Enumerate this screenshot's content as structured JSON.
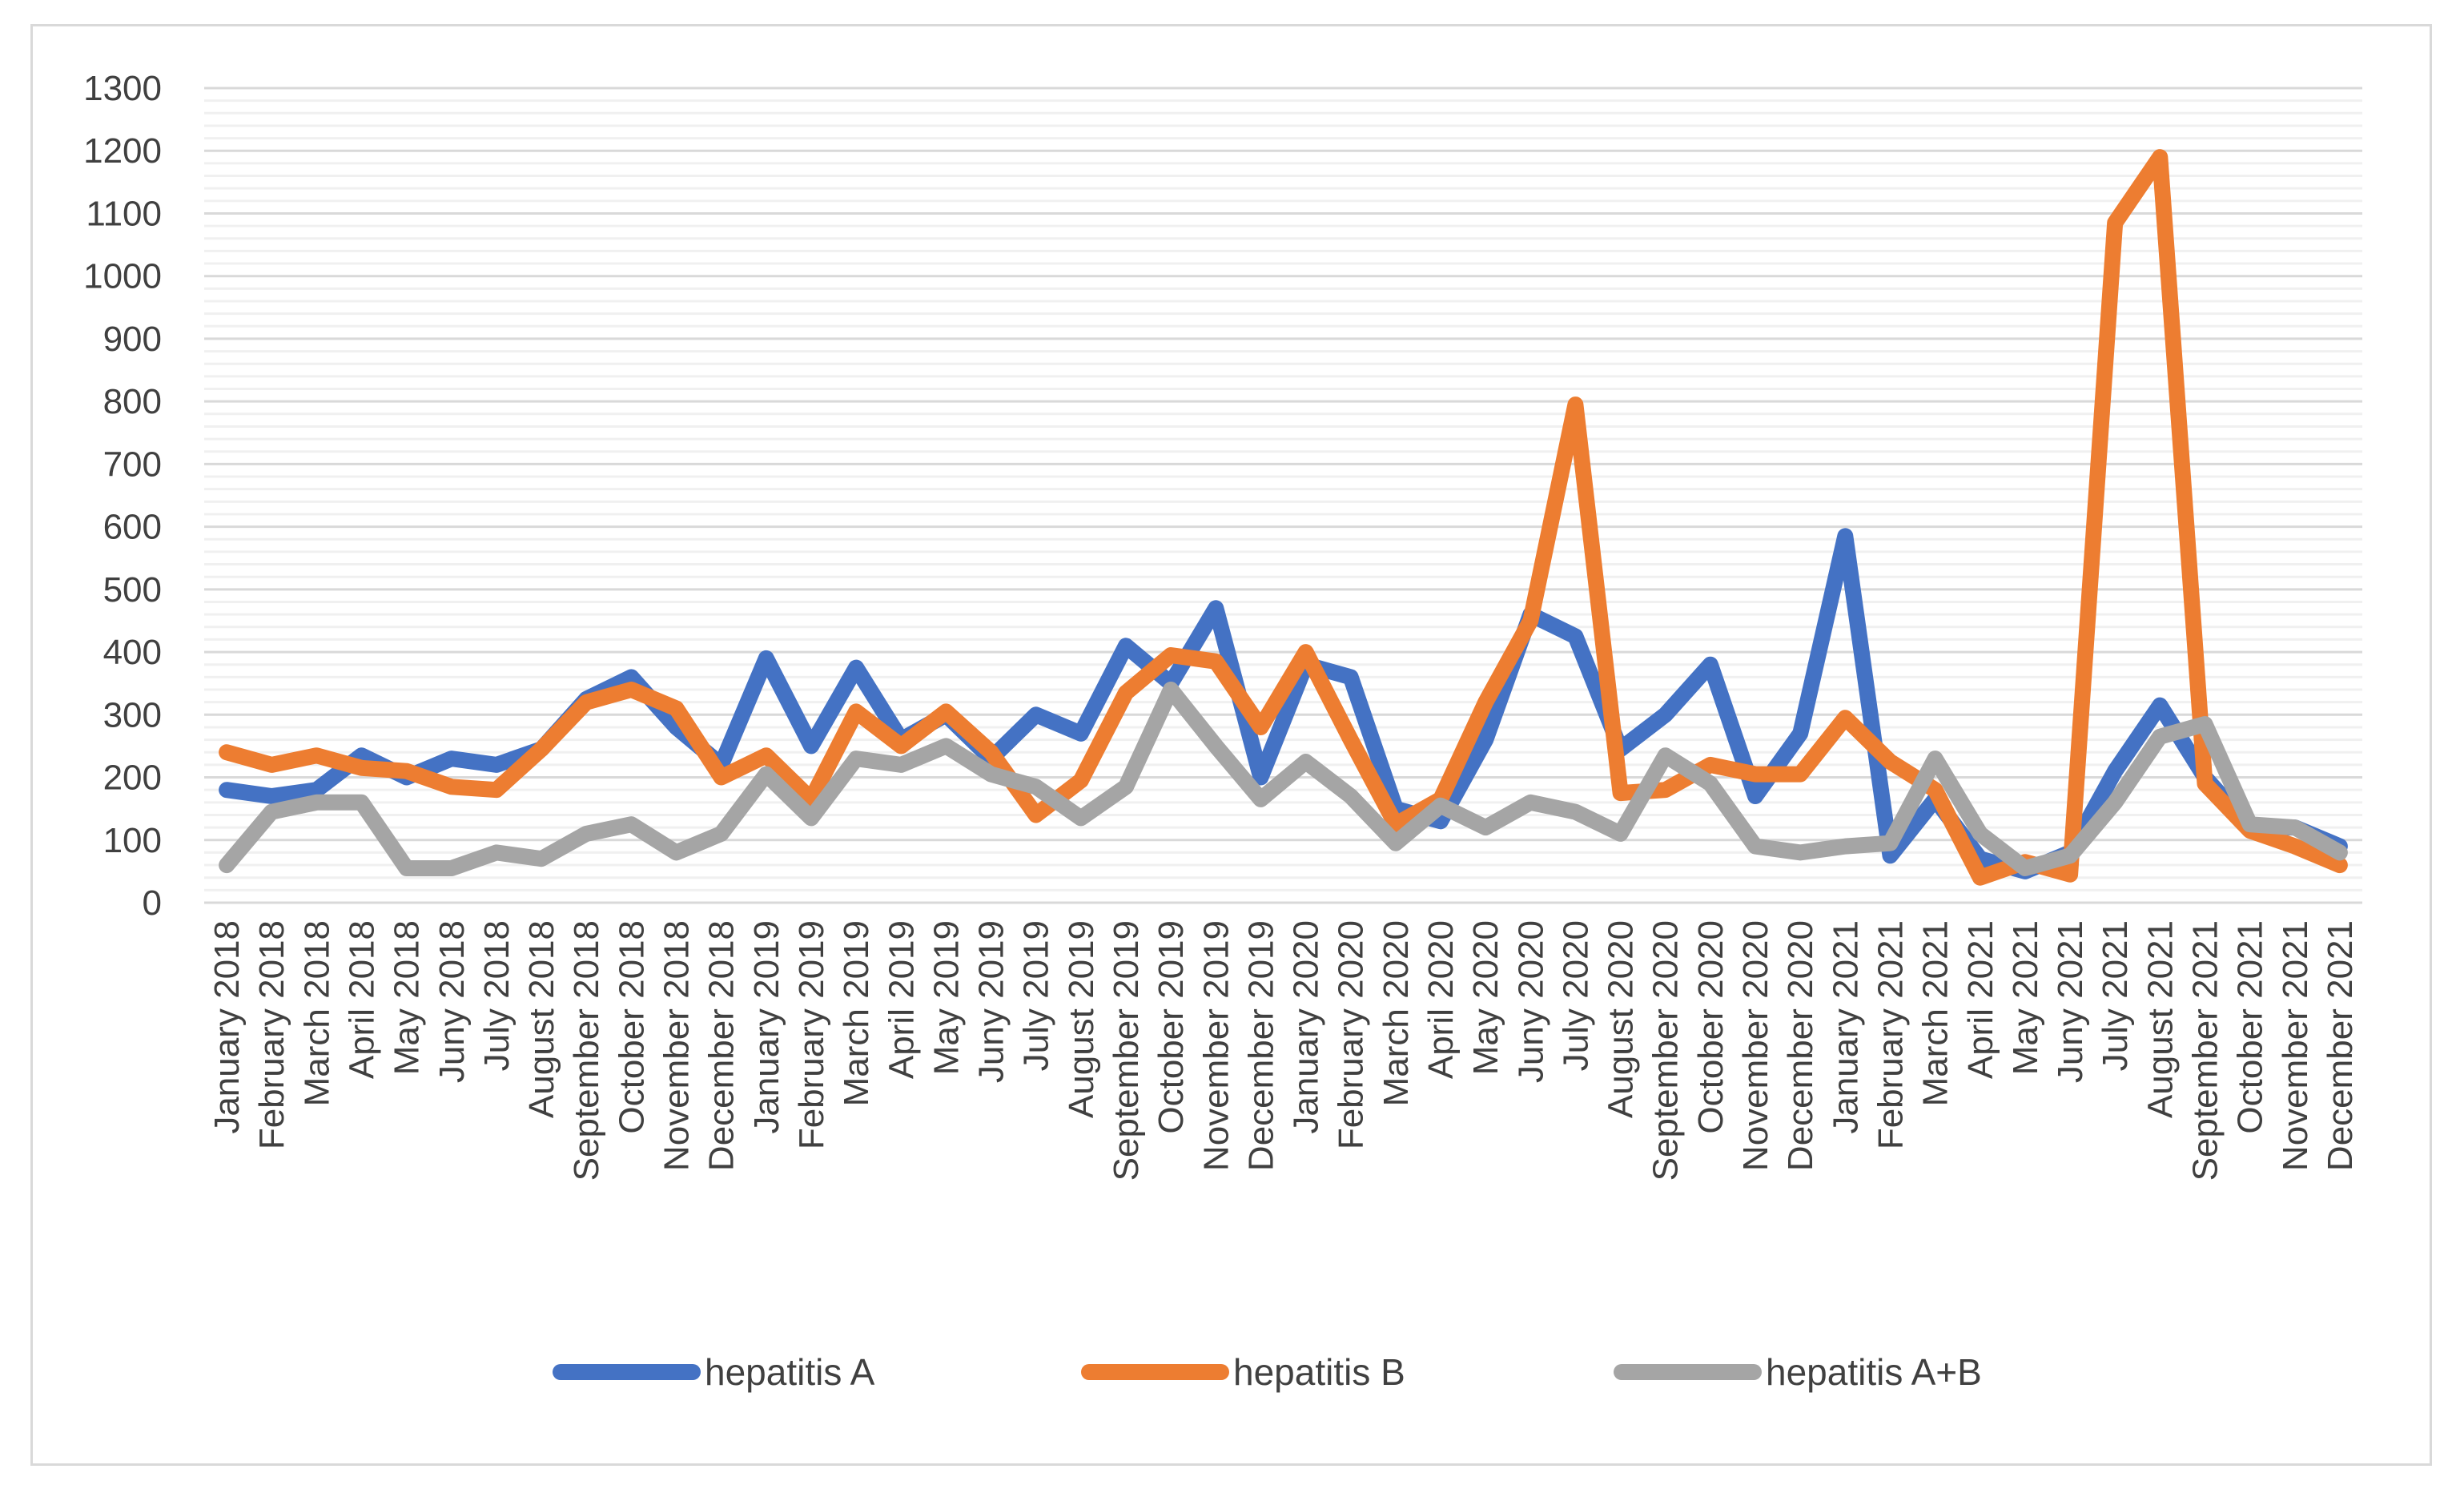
{
  "chart_data": {
    "type": "line",
    "title": "",
    "xlabel": "",
    "ylabel": "",
    "ylim": [
      0,
      1300
    ],
    "yticks": [
      0,
      100,
      200,
      300,
      400,
      500,
      600,
      700,
      800,
      900,
      1000,
      1100,
      1200,
      1300
    ],
    "grid": true,
    "legend_position": "bottom",
    "categories": [
      "January 2018",
      "February 2018",
      "March 2018",
      "April 2018",
      "May 2018",
      "Juny 2018",
      "July 2018",
      "August 2018",
      "September 2018",
      "October 2018",
      "November 2018",
      "December 2018",
      "January 2019",
      "February 2019",
      "March 2019",
      "April 2019",
      "May 2019",
      "Juny 2019",
      "July 2019",
      "August 2019",
      "September 2019",
      "October 2019",
      "November 2019",
      "December 2019",
      "January 2020",
      "February 2020",
      "March 2020",
      "April 2020",
      "May 2020",
      "Juny 2020",
      "July 2020",
      "August 2020",
      "September 2020",
      "October 2020",
      "November 2020",
      "December 2020",
      "January 2021",
      "February 2021",
      "March 2021",
      "April 2021",
      "May 2021",
      "Juny 2021",
      "July 2021",
      "August 2021",
      "September 2021",
      "October 2021",
      "November 2021",
      "December 2021"
    ],
    "series": [
      {
        "name": "hepatitis A",
        "color": "#4472c4",
        "values": [
          180,
          170,
          180,
          235,
          200,
          230,
          220,
          245,
          325,
          360,
          280,
          220,
          390,
          250,
          375,
          260,
          300,
          230,
          300,
          270,
          410,
          350,
          470,
          200,
          380,
          360,
          150,
          130,
          260,
          460,
          425,
          245,
          300,
          380,
          170,
          270,
          585,
          75,
          165,
          70,
          50,
          80,
          210,
          315,
          200,
          120,
          120,
          90
        ]
      },
      {
        "name": "hepatitis B",
        "color": "#ed7d31",
        "values": [
          240,
          220,
          235,
          215,
          210,
          185,
          180,
          245,
          320,
          340,
          310,
          200,
          235,
          165,
          305,
          250,
          305,
          240,
          140,
          195,
          335,
          395,
          385,
          280,
          400,
          260,
          125,
          165,
          320,
          450,
          795,
          175,
          180,
          220,
          205,
          205,
          295,
          225,
          180,
          40,
          65,
          45,
          1085,
          1190,
          190,
          115,
          90,
          60
        ]
      },
      {
        "name": "hepatitis A+B",
        "color": "#a5a5a5",
        "values": [
          60,
          145,
          160,
          160,
          55,
          55,
          80,
          70,
          110,
          125,
          80,
          110,
          205,
          135,
          230,
          220,
          250,
          205,
          185,
          135,
          185,
          340,
          250,
          165,
          225,
          170,
          95,
          155,
          120,
          160,
          145,
          110,
          235,
          190,
          90,
          80,
          90,
          95,
          230,
          110,
          55,
          75,
          160,
          265,
          285,
          125,
          120,
          80
        ]
      }
    ]
  }
}
